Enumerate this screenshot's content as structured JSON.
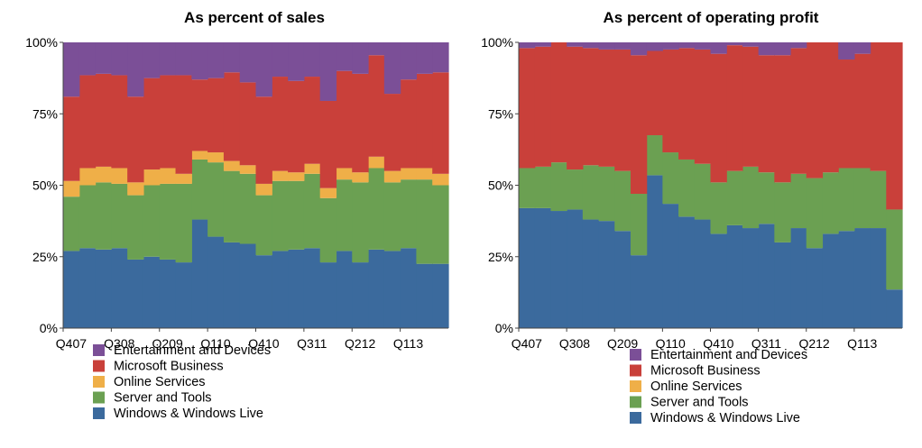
{
  "colors": {
    "Entertainment and Devices": "#7b4f97",
    "Microsoft Business": "#c9403a",
    "Online Services": "#efaf48",
    "Server and Tools": "#6ba052",
    "Windows & Windows Live": "#3b6a9d"
  },
  "chart_data": [
    {
      "type": "area",
      "stacked": true,
      "title": "As percent of sales",
      "x": [
        "Q407",
        "Q108",
        "Q208",
        "Q308",
        "Q408",
        "Q109",
        "Q209",
        "Q309",
        "Q409",
        "Q110",
        "Q210",
        "Q310",
        "Q410",
        "Q111",
        "Q211",
        "Q311",
        "Q411",
        "Q112",
        "Q212",
        "Q312",
        "Q412",
        "Q113",
        "Q213",
        "Q313"
      ],
      "x_tick_labels": [
        "Q407",
        "Q308",
        "Q209",
        "Q110",
        "Q410",
        "Q311",
        "Q212",
        "Q113"
      ],
      "y_tick_labels": [
        "0%",
        "25%",
        "50%",
        "75%",
        "100%"
      ],
      "ylim": [
        0,
        100
      ],
      "legend": "bottom-left",
      "series": [
        {
          "name": "Windows & Windows Live",
          "values": [
            27,
            28,
            27.5,
            28,
            24,
            25,
            24,
            23,
            38,
            32,
            30,
            29.5,
            25.5,
            27,
            27.5,
            28,
            23,
            27,
            23,
            27.5,
            27,
            28,
            22.5,
            22.5
          ]
        },
        {
          "name": "Server and Tools",
          "values": [
            19,
            22,
            23.5,
            22.5,
            22.5,
            25,
            26.5,
            27.5,
            21,
            26,
            25,
            24.5,
            21,
            24.5,
            24,
            26,
            22.5,
            25,
            28,
            28.5,
            24,
            24,
            29.5,
            27.5
          ]
        },
        {
          "name": "Online Services",
          "values": [
            5.5,
            6,
            5.5,
            5.5,
            4.5,
            5.5,
            5.5,
            3.5,
            3,
            3.5,
            3.5,
            3,
            4,
            3.5,
            3,
            3.5,
            3.5,
            4,
            3.5,
            4,
            4,
            4,
            4,
            4
          ]
        },
        {
          "name": "Microsoft Business",
          "values": [
            29.5,
            32.5,
            32.5,
            32.5,
            30,
            32,
            32.5,
            34.5,
            25,
            26,
            31,
            29,
            30.5,
            33,
            32,
            30.5,
            30.5,
            34,
            34.5,
            35.5,
            27,
            31,
            33,
            35.5
          ]
        },
        {
          "name": "Entertainment and Devices",
          "values": [
            19,
            11.5,
            11,
            11.5,
            19,
            12.5,
            11.5,
            11.5,
            13,
            12.5,
            10.5,
            14,
            19,
            12,
            13.5,
            12,
            20.5,
            10,
            11,
            4.5,
            18,
            13,
            11,
            10.5
          ]
        }
      ]
    },
    {
      "type": "area",
      "stacked": true,
      "title": "As percent of operating profit",
      "x": [
        "Q407",
        "Q108",
        "Q208",
        "Q308",
        "Q408",
        "Q109",
        "Q209",
        "Q309",
        "Q409",
        "Q110",
        "Q210",
        "Q310",
        "Q410",
        "Q111",
        "Q211",
        "Q311",
        "Q411",
        "Q112",
        "Q212",
        "Q312",
        "Q412",
        "Q113",
        "Q213",
        "Q313"
      ],
      "x_tick_labels": [
        "Q407",
        "Q308",
        "Q209",
        "Q110",
        "Q410",
        "Q311",
        "Q212",
        "Q113"
      ],
      "y_tick_labels": [
        "0%",
        "25%",
        "50%",
        "75%",
        "100%"
      ],
      "ylim": [
        0,
        100
      ],
      "legend": "bottom-right",
      "series": [
        {
          "name": "Windows & Windows Live",
          "values": [
            42,
            42,
            41,
            41.5,
            38,
            37.5,
            34,
            25.5,
            53.5,
            43.5,
            39,
            38,
            33,
            36,
            35,
            36.5,
            30,
            35,
            28,
            33,
            34,
            35,
            35,
            13.5
          ]
        },
        {
          "name": "Server and Tools",
          "values": [
            14,
            14.5,
            17,
            14,
            19,
            19,
            21,
            21.5,
            14,
            18,
            20,
            19.5,
            18,
            19,
            21.5,
            18,
            21,
            19,
            24.5,
            21.5,
            22,
            21,
            20,
            28
          ]
        },
        {
          "name": "Online Services",
          "values": [
            0,
            0,
            0,
            0,
            0,
            0,
            0,
            0,
            0,
            0,
            0,
            0,
            0,
            0,
            0,
            0,
            0,
            0,
            0,
            0,
            0,
            0,
            0,
            0
          ]
        },
        {
          "name": "Microsoft Business",
          "values": [
            42,
            42,
            42,
            43,
            41,
            41,
            42.5,
            48.5,
            29.5,
            36,
            39,
            40,
            45,
            44,
            42,
            41,
            44.5,
            44,
            47.5,
            45.5,
            38,
            40,
            45,
            58.5
          ]
        },
        {
          "name": "Entertainment and Devices",
          "values": [
            2,
            1.5,
            0,
            1.5,
            2,
            2.5,
            2.5,
            4.5,
            3,
            2.5,
            2,
            2.5,
            4,
            1,
            1.5,
            4.5,
            4.5,
            2,
            0,
            0,
            6,
            4,
            0,
            0
          ]
        }
      ]
    }
  ],
  "legend_order": [
    "Entertainment and Devices",
    "Microsoft Business",
    "Online Services",
    "Server and Tools",
    "Windows & Windows Live"
  ]
}
